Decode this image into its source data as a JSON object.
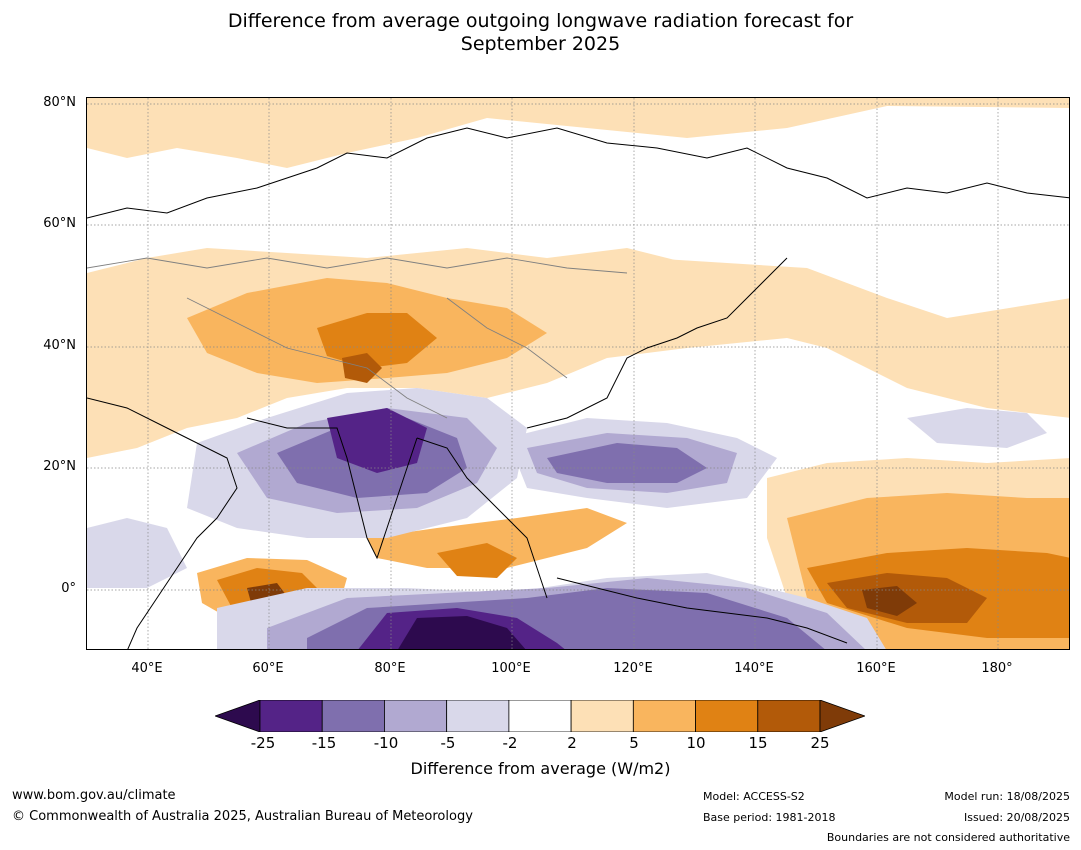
{
  "title_line1": "Difference from average outgoing longwave radiation forecast for",
  "title_line2": "September 2025",
  "lat_labels": [
    "80°N",
    "60°N",
    "40°N",
    "20°N",
    "0°"
  ],
  "lon_labels": [
    "40°E",
    "60°E",
    "80°E",
    "100°E",
    "120°E",
    "140°E",
    "160°E",
    "180°"
  ],
  "colorbar": {
    "ticks": [
      "-25",
      "-15",
      "-10",
      "-5",
      "-2",
      "2",
      "5",
      "10",
      "15",
      "25"
    ],
    "label": "Difference from average (W/m2)",
    "colors": [
      "#2d0a4e",
      "#542387",
      "#7f6fae",
      "#b1a9d1",
      "#d9d8ea",
      "#ffffff",
      "#fde0b6",
      "#f9b55e",
      "#e08214",
      "#b25a09",
      "#7f3b08"
    ]
  },
  "footer": {
    "website": "www.bom.gov.au/climate",
    "copyright": "© Commonwealth of Australia 2025, Australian Bureau of Meteorology",
    "model": "Model: ACCESS-S2",
    "base_period": "Base period: 1981-2018",
    "model_run": "Model run: 18/08/2025",
    "issued": "Issued: 20/08/2025",
    "boundaries": "Boundaries are not considered authoritative"
  }
}
